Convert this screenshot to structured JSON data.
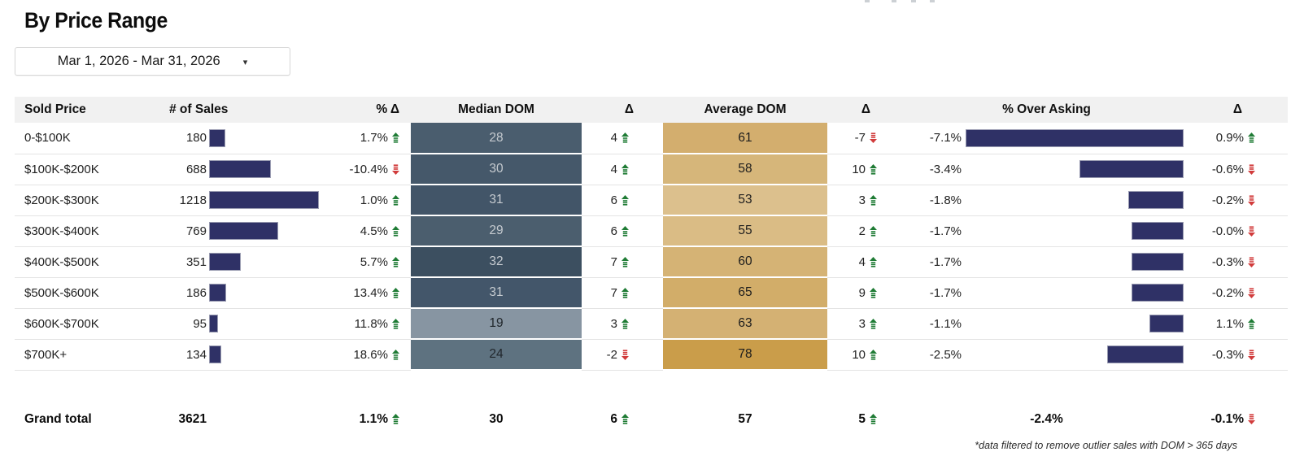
{
  "page": {
    "title": "By Price Range",
    "footnote": "*data filtered to remove outlier sales with DOM > 365 days"
  },
  "date_filter": {
    "value": "Mar 1, 2026 - Mar 31, 2026",
    "icon": "caret-down-icon",
    "glyph": "▾"
  },
  "theme": {
    "bar_color": "#2f3166",
    "up_color": "#1e7b34",
    "down_color": "#d13b3b",
    "header_bg": "#f1f1f1"
  },
  "table": {
    "columns": [
      "Sold Price",
      "# of Sales",
      "% Δ",
      "Median DOM",
      "Δ",
      "Average DOM",
      "Δ",
      "% Over Asking",
      "Δ"
    ],
    "rows": [
      {
        "sold_price": "0-$100K",
        "sales": 180,
        "sales_pct_delta": "1.7%",
        "sales_pct_dir": "up",
        "median_dom": 28,
        "median_dom_bg": "#4a5d6e",
        "median_dom_fg": "#c6cbd0",
        "median_delta": "4",
        "median_delta_dir": "up",
        "avg_dom": 61,
        "avg_dom_bg": "#d3ae6e",
        "avg_delta": "-7",
        "avg_delta_dir": "down",
        "over_asking": "-7.1%",
        "over_asking_value": 7.1,
        "over_delta": "0.9%",
        "over_delta_dir": "up"
      },
      {
        "sold_price": "$100K-$200K",
        "sales": 688,
        "sales_pct_delta": "-10.4%",
        "sales_pct_dir": "down",
        "median_dom": 30,
        "median_dom_bg": "#45586a",
        "median_dom_fg": "#c6cbd0",
        "median_delta": "4",
        "median_delta_dir": "up",
        "avg_dom": 58,
        "avg_dom_bg": "#d6b67a",
        "avg_delta": "10",
        "avg_delta_dir": "up",
        "over_asking": "-3.4%",
        "over_asking_value": 3.4,
        "over_delta": "-0.6%",
        "over_delta_dir": "down"
      },
      {
        "sold_price": "$200K-$300K",
        "sales": 1218,
        "sales_pct_delta": "1.0%",
        "sales_pct_dir": "up",
        "median_dom": 31,
        "median_dom_bg": "#425568",
        "median_dom_fg": "#c6cbd0",
        "median_delta": "6",
        "median_delta_dir": "up",
        "avg_dom": 53,
        "avg_dom_bg": "#dcc08d",
        "avg_delta": "3",
        "avg_delta_dir": "up",
        "over_asking": "-1.8%",
        "over_asking_value": 1.8,
        "over_delta": "-0.2%",
        "over_delta_dir": "down"
      },
      {
        "sold_price": "$300K-$400K",
        "sales": 769,
        "sales_pct_delta": "4.5%",
        "sales_pct_dir": "up",
        "median_dom": 29,
        "median_dom_bg": "#4b5e6e",
        "median_dom_fg": "#c6cbd0",
        "median_delta": "6",
        "median_delta_dir": "up",
        "avg_dom": 55,
        "avg_dom_bg": "#dabc85",
        "avg_delta": "2",
        "avg_delta_dir": "up",
        "over_asking": "-1.7%",
        "over_asking_value": 1.7,
        "over_delta": "-0.0%",
        "over_delta_dir": "down"
      },
      {
        "sold_price": "$400K-$500K",
        "sales": 351,
        "sales_pct_delta": "5.7%",
        "sales_pct_dir": "up",
        "median_dom": 32,
        "median_dom_bg": "#3c4f60",
        "median_dom_fg": "#c6cbd0",
        "median_delta": "7",
        "median_delta_dir": "up",
        "avg_dom": 60,
        "avg_dom_bg": "#d5b375",
        "avg_delta": "4",
        "avg_delta_dir": "up",
        "over_asking": "-1.7%",
        "over_asking_value": 1.7,
        "over_delta": "-0.3%",
        "over_delta_dir": "down"
      },
      {
        "sold_price": "$500K-$600K",
        "sales": 186,
        "sales_pct_delta": "13.4%",
        "sales_pct_dir": "up",
        "median_dom": 31,
        "median_dom_bg": "#43566a",
        "median_dom_fg": "#c6cbd0",
        "median_delta": "7",
        "median_delta_dir": "up",
        "avg_dom": 65,
        "avg_dom_bg": "#d2ad69",
        "avg_delta": "9",
        "avg_delta_dir": "up",
        "over_asking": "-1.7%",
        "over_asking_value": 1.7,
        "over_delta": "-0.2%",
        "over_delta_dir": "down"
      },
      {
        "sold_price": "$600K-$700K",
        "sales": 95,
        "sales_pct_delta": "11.8%",
        "sales_pct_dir": "up",
        "median_dom": 19,
        "median_dom_bg": "#8795a2",
        "median_dom_fg": "#20262b",
        "median_delta": "3",
        "median_delta_dir": "up",
        "avg_dom": 63,
        "avg_dom_bg": "#d4b173",
        "avg_delta": "3",
        "avg_delta_dir": "up",
        "over_asking": "-1.1%",
        "over_asking_value": 1.1,
        "over_delta": "1.1%",
        "over_delta_dir": "up"
      },
      {
        "sold_price": "$700K+",
        "sales": 134,
        "sales_pct_delta": "18.6%",
        "sales_pct_dir": "up",
        "median_dom": 24,
        "median_dom_bg": "#5e7280",
        "median_dom_fg": "#20262b",
        "median_delta": "-2",
        "median_delta_dir": "down",
        "avg_dom": 78,
        "avg_dom_bg": "#ca9d4a",
        "avg_delta": "10",
        "avg_delta_dir": "up",
        "over_asking": "-2.5%",
        "over_asking_value": 2.5,
        "over_delta": "-0.3%",
        "over_delta_dir": "down"
      }
    ],
    "grand_total": {
      "sold_price": "Grand total",
      "sales": "3621",
      "sales_pct_delta": "1.1%",
      "sales_pct_dir": "up",
      "median_dom": "30",
      "median_delta": "6",
      "median_delta_dir": "up",
      "avg_dom": "57",
      "avg_delta": "5",
      "avg_delta_dir": "up",
      "over_asking": "-2.4%",
      "over_delta": "-0.1%",
      "over_delta_dir": "down"
    }
  }
}
